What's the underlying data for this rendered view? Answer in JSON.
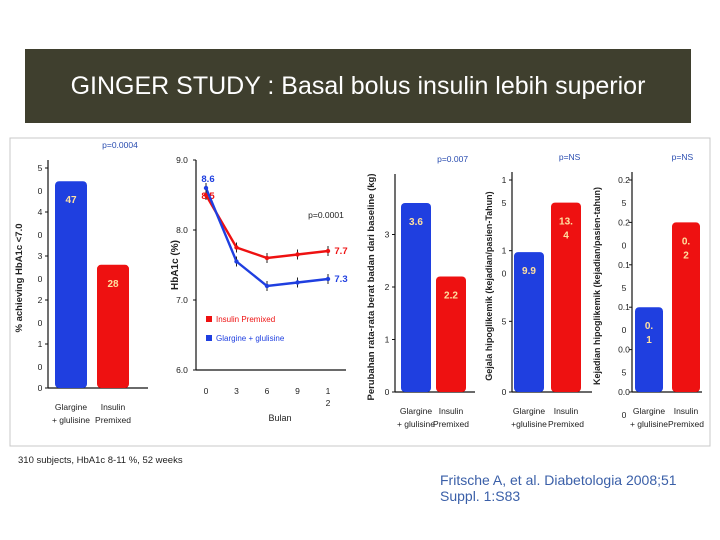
{
  "slide": {
    "title": "GINGER STUDY : Basal bolus insulin lebih superior",
    "footnote": "310 subjects, HbA1c 8-11 %, 52 weeks",
    "citation": "Fritsche A, et al. Diabetologia 2008;51 Suppl. 1:S83"
  },
  "colors": {
    "blue": "#1f3fe0",
    "red": "#ee1111",
    "title_bg": "#3f3f2e",
    "pval": "#2a4db0"
  },
  "chart_data": [
    {
      "type": "bar",
      "ylabel": "% achieving HbA1c <7.0",
      "pvalue": "p=0.0004",
      "ylim": [
        0,
        50
      ],
      "ticks": [
        {
          "value": 0,
          "label": "0"
        },
        {
          "value": 10,
          "label": "1\n0"
        },
        {
          "value": 20,
          "label": "2\n0"
        },
        {
          "value": 30,
          "label": "3\n0"
        },
        {
          "value": 40,
          "label": "4\n0"
        },
        {
          "value": 50,
          "label": "5\n0"
        }
      ],
      "categories": [
        "Glargine\n+ glulisine",
        "Insulin\nPremixed"
      ],
      "values": [
        47,
        28
      ],
      "value_labels": [
        "47",
        "28"
      ]
    },
    {
      "type": "line",
      "ylabel": "HbA1c (%)",
      "xlabel": "Bulan",
      "pvalue": "p=0.0001",
      "ylim": [
        6.0,
        9.0
      ],
      "yticks": [
        "6.0",
        "7.0",
        "8.0",
        "9.0"
      ],
      "x": [
        0,
        3,
        6,
        9,
        12
      ],
      "xticklabels": [
        "0",
        "3",
        "6",
        "9",
        "1\n2"
      ],
      "series": [
        {
          "name": "Insulin Premixed",
          "values": [
            8.5,
            7.75,
            7.6,
            7.65,
            7.7
          ],
          "end_label": "7.7",
          "start_label": "8.5"
        },
        {
          "name": "Glargine + glulisine",
          "values": [
            8.6,
            7.55,
            7.2,
            7.25,
            7.3
          ],
          "end_label": "7.3",
          "start_label": "8.6"
        }
      ]
    },
    {
      "type": "bar",
      "ylabel": "Perubahan rata-rata berat badan dari baseline (kg)",
      "pvalue": "p=0.007",
      "ylim": [
        0,
        4
      ],
      "yticks": [
        "0",
        "1",
        "2",
        "3"
      ],
      "categories": [
        "Glargine\n+ glulisine",
        "Insulin\nPremixed"
      ],
      "values": [
        3.6,
        2.2
      ],
      "value_labels": [
        "3.6",
        "2.2"
      ]
    },
    {
      "type": "bar",
      "ylabel": "Gejala hipoglikemik (kejadian/pasien-Tahun)",
      "pvalue": "p=NS",
      "ylim": [
        0,
        15
      ],
      "ticks": [
        {
          "value": 0,
          "label": "0"
        },
        {
          "value": 5,
          "label": "5"
        },
        {
          "value": 10,
          "label": "1\n0"
        },
        {
          "value": 15,
          "label": "1\n5"
        }
      ],
      "categories": [
        "Glargine\n+glulisine",
        "Insulin\nPremixed"
      ],
      "values": [
        9.9,
        13.4
      ],
      "value_labels": [
        "9.9",
        "13.\n4"
      ]
    },
    {
      "type": "bar",
      "ylabel": "Kejadian hipoglikemik (kejadian/pasien-tahun)",
      "pvalue": "p=NS",
      "ylim": [
        0,
        0.25
      ],
      "ticks": [
        {
          "value": 0,
          "label": "0.0\n0"
        },
        {
          "value": 0.05,
          "label": "0.0\n5"
        },
        {
          "value": 0.1,
          "label": "0.1\n0"
        },
        {
          "value": 0.15,
          "label": "0.1\n5"
        },
        {
          "value": 0.2,
          "label": "0.2\n0"
        },
        {
          "value": 0.25,
          "label": "0.2\n5"
        }
      ],
      "categories": [
        "Glargine\n+ glulisine",
        "Insulin\nPremixed"
      ],
      "values": [
        0.1,
        0.2
      ],
      "value_labels": [
        "0.\n1",
        "0.\n2"
      ]
    }
  ]
}
